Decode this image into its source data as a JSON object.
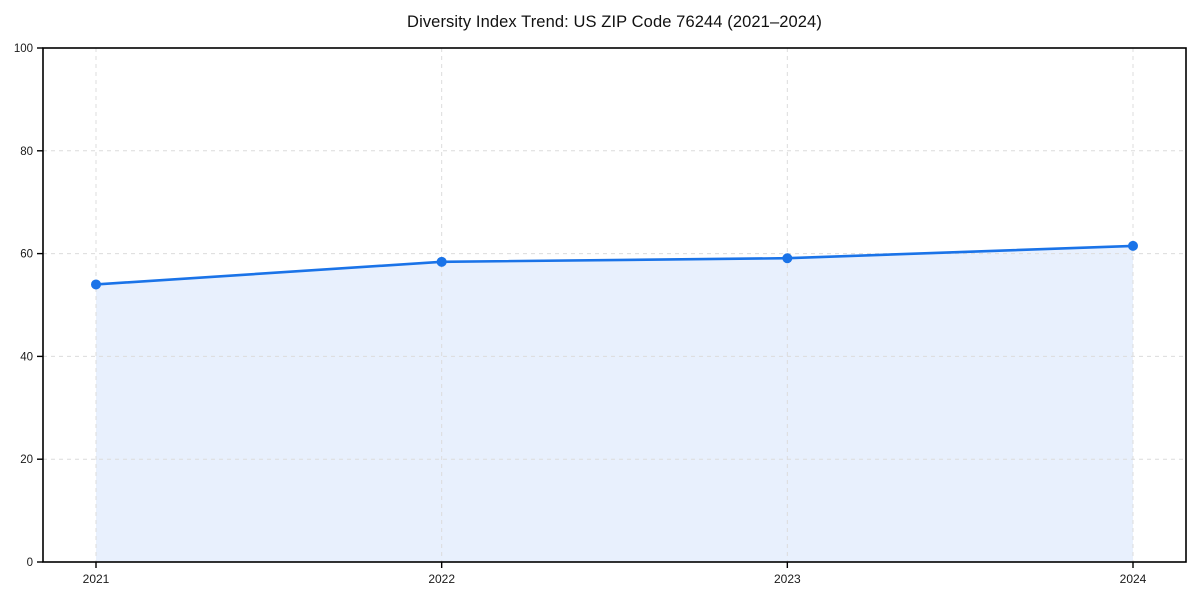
{
  "title": "Diversity Index Trend: US ZIP Code 76244 (2021–2024)",
  "chart_data": {
    "type": "line",
    "title": "Diversity Index Trend: US ZIP Code 76244 (2021–2024)",
    "x": [
      "2021",
      "2022",
      "2023",
      "2024"
    ],
    "series": [
      {
        "name": "Diversity Index",
        "values": [
          54.0,
          58.4,
          59.1,
          61.5
        ]
      }
    ],
    "xlabel": "",
    "ylabel": "",
    "ylim": [
      0,
      100
    ],
    "yticks": [
      0,
      20,
      40,
      60,
      80,
      100
    ],
    "grid": true,
    "grid_style": "dashed",
    "legend": "none",
    "area_fill": true,
    "marker": "circle",
    "colors": {
      "line": "#1a73e8",
      "fill": "#e8f0fd",
      "grid": "#dcdcdc",
      "axis": "#000000",
      "tick_text": "#1a1a1a"
    }
  }
}
